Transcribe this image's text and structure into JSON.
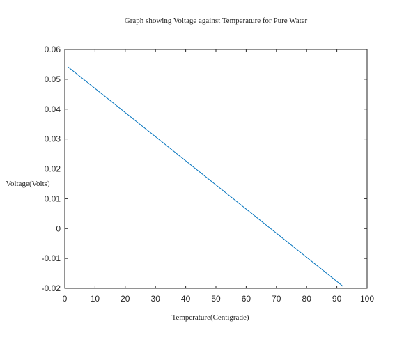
{
  "chart_data": {
    "type": "line",
    "title": "Graph showing Voltage against Temperature for Pure Water",
    "xlabel": "Temperature(Centigrade)",
    "ylabel": "Voltage(Volts)",
    "xlim": [
      0,
      100
    ],
    "ylim": [
      -0.02,
      0.06
    ],
    "xticks": [
      0,
      10,
      20,
      30,
      40,
      50,
      60,
      70,
      80,
      90,
      100
    ],
    "yticks": [
      -0.02,
      -0.01,
      0,
      0.01,
      0.02,
      0.03,
      0.04,
      0.05,
      0.06
    ],
    "xtick_labels": [
      "0",
      "10",
      "20",
      "30",
      "40",
      "50",
      "60",
      "70",
      "80",
      "90",
      "100"
    ],
    "ytick_labels": [
      "-0.02",
      "-0.01",
      "0",
      "0.01",
      "0.02",
      "0.03",
      "0.04",
      "0.05",
      "0.06"
    ],
    "grid": false,
    "series": [
      {
        "color": "#0072bd",
        "x": [
          1,
          92
        ],
        "y": [
          0.0542,
          -0.0193
        ]
      }
    ]
  }
}
